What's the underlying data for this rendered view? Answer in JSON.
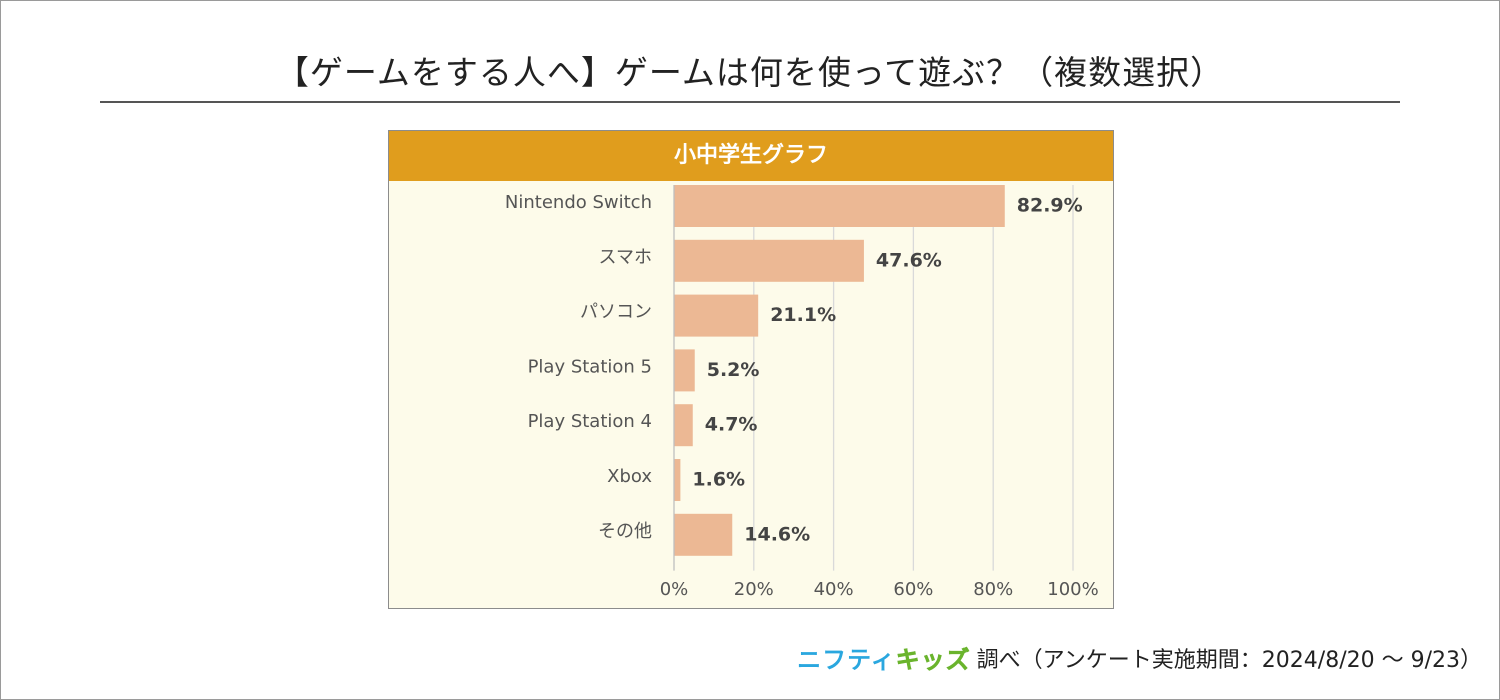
{
  "title": "【ゲームをする人へ】ゲームは何を使って遊ぶ？（複数選択）",
  "footer": {
    "logo_part1": "ニフティ",
    "logo_part2": "キッズ",
    "source_text": "調べ（アンケート実施期間：2024/8/20 ～ 9/23）"
  },
  "colors": {
    "header": "#e09d1d",
    "bar": "#ecb894",
    "panel_bg": "#fdfbea",
    "gridline": "#d9d9d9"
  },
  "chart_data": {
    "type": "bar",
    "orientation": "horizontal",
    "title": "小中学生グラフ",
    "categories": [
      "Nintendo Switch",
      "スマホ",
      "パソコン",
      "Play Station 5",
      "Play Station 4",
      "Xbox",
      "その他"
    ],
    "values": [
      82.9,
      47.6,
      21.1,
      5.2,
      4.7,
      1.6,
      14.6
    ],
    "value_labels": [
      "82.9%",
      "47.6%",
      "21.1%",
      "5.2%",
      "4.7%",
      "1.6%",
      "14.6%"
    ],
    "xlim": [
      0,
      100
    ],
    "xticks": [
      "0%",
      "20%",
      "40%",
      "60%",
      "80%",
      "100%"
    ],
    "grid": true
  }
}
